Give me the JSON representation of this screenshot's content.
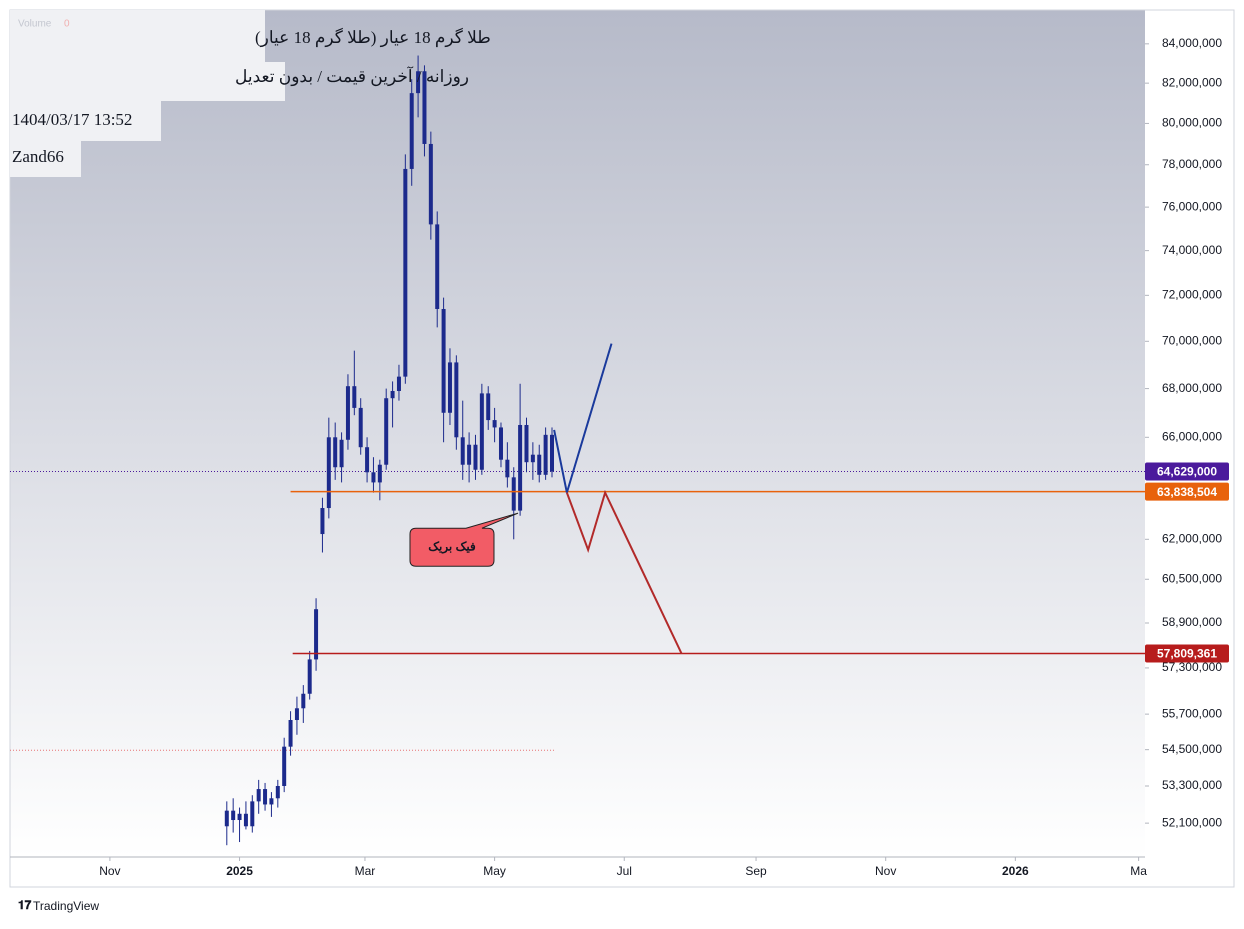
{
  "chart_data": {
    "type": "candlestick",
    "header": {
      "symbol": "طلا گرم 18 عیار (طلا گرم 18 عیار)",
      "settings": "روزانه / آخرین قیمت / بدون تعدیل",
      "timestamp": "1404/03/17 13:52",
      "author": "Zand66",
      "volume_label": "Volume",
      "volume_value": 0
    },
    "brand": "TradingView",
    "log_scale": true,
    "color": "#1c2a8c",
    "xlim": [
      -108,
      426
    ],
    "xticks": [
      {
        "value": -61,
        "label": "Nov"
      },
      {
        "value": 0,
        "label": "2025"
      },
      {
        "value": 59,
        "label": "Mar"
      },
      {
        "value": 120,
        "label": "May"
      },
      {
        "value": 181,
        "label": "Jul"
      },
      {
        "value": 243,
        "label": "Sep"
      },
      {
        "value": 304,
        "label": "Nov"
      },
      {
        "value": 365,
        "label": "2026"
      },
      {
        "value": 423,
        "label": "Ma"
      }
    ],
    "ylim": [
      51030000,
      85760000
    ],
    "yticks": [
      {
        "value": 84000000,
        "label": "84,000,000"
      },
      {
        "value": 82000000,
        "label": "82,000,000"
      },
      {
        "value": 80000000,
        "label": "80,000,000"
      },
      {
        "value": 78000000,
        "label": "78,000,000"
      },
      {
        "value": 76000000,
        "label": "76,000,000"
      },
      {
        "value": 74000000,
        "label": "74,000,000"
      },
      {
        "value": 72000000,
        "label": "72,000,000"
      },
      {
        "value": 70000000,
        "label": "70,000,000"
      },
      {
        "value": 68000000,
        "label": "68,000,000"
      },
      {
        "value": 66000000,
        "label": "66,000,000"
      },
      {
        "value": 62000000,
        "label": "62,000,000"
      },
      {
        "value": 60500000,
        "label": "60,500,000"
      },
      {
        "value": 58900000,
        "label": "58,900,000"
      },
      {
        "value": 57300000,
        "label": "57,300,000"
      },
      {
        "value": 55700000,
        "label": "55,700,000"
      },
      {
        "value": 54500000,
        "label": "54,500,000"
      },
      {
        "value": 53300000,
        "label": "53,300,000"
      },
      {
        "value": 52100000,
        "label": "52,100,000"
      }
    ],
    "x": [
      -6,
      -3,
      0,
      3,
      6,
      9,
      12,
      15,
      18,
      21,
      24,
      27,
      30,
      33,
      36,
      39,
      42,
      45,
      48,
      51,
      54,
      57,
      60,
      63,
      66,
      69,
      72,
      75,
      78,
      81,
      84,
      87,
      90,
      93,
      96,
      99,
      102,
      105,
      108,
      111,
      114,
      117,
      120,
      123,
      126,
      129,
      132,
      135,
      138,
      141,
      144,
      147
    ],
    "open": [
      52000000,
      52500000,
      52200000,
      52400000,
      52000000,
      52800000,
      53200000,
      52700000,
      52900000,
      53300000,
      54600000,
      55500000,
      55900000,
      56400000,
      57600000,
      62200000,
      63200000,
      66000000,
      64800000,
      65900000,
      68100000,
      67200000,
      65600000,
      64600000,
      64200000,
      64900000,
      67600000,
      67900000,
      68500000,
      77800000,
      81500000,
      82600000,
      79000000,
      75200000,
      71400000,
      67000000,
      69100000,
      66000000,
      64900000,
      65700000,
      64700000,
      67800000,
      66700000,
      66400000,
      65100000,
      64400000,
      63100000,
      66500000,
      65000000,
      65300000,
      64500000,
      66100000
    ],
    "high": [
      52800000,
      52900000,
      52600000,
      52800000,
      53000000,
      53500000,
      53400000,
      53100000,
      53500000,
      54900000,
      55800000,
      56300000,
      56700000,
      57900000,
      59800000,
      63600000,
      66800000,
      66600000,
      66200000,
      68600000,
      69600000,
      67600000,
      66000000,
      65200000,
      65100000,
      68000000,
      68300000,
      69000000,
      78500000,
      82200000,
      83400000,
      82900000,
      79600000,
      75800000,
      71900000,
      69700000,
      69400000,
      67500000,
      66200000,
      66100000,
      68200000,
      68100000,
      67200000,
      66600000,
      65800000,
      64800000,
      68200000,
      66800000,
      65800000,
      65700000,
      66400000,
      66400000
    ],
    "low": [
      51400000,
      51800000,
      51500000,
      51900000,
      51800000,
      52400000,
      52500000,
      52300000,
      52600000,
      53100000,
      54300000,
      55000000,
      55400000,
      56200000,
      57200000,
      61500000,
      62800000,
      64300000,
      64200000,
      65500000,
      66900000,
      65300000,
      64200000,
      63800000,
      63500000,
      64700000,
      66400000,
      67500000,
      68200000,
      77000000,
      80300000,
      78400000,
      74500000,
      70600000,
      65800000,
      66500000,
      65500000,
      64300000,
      64200000,
      64300000,
      64500000,
      66300000,
      65800000,
      64800000,
      64000000,
      62000000,
      62900000,
      64600000,
      64300000,
      64200000,
      64300000,
      64400000
    ],
    "close": [
      52500000,
      52200000,
      52400000,
      52000000,
      52800000,
      53200000,
      52700000,
      52900000,
      53300000,
      54600000,
      55500000,
      55900000,
      56400000,
      57600000,
      59400000,
      63200000,
      66000000,
      64800000,
      65900000,
      68100000,
      67200000,
      65600000,
      64600000,
      64200000,
      64900000,
      67600000,
      67900000,
      68500000,
      77800000,
      81500000,
      82600000,
      79000000,
      75200000,
      71400000,
      67000000,
      69100000,
      66000000,
      64900000,
      65700000,
      64700000,
      67800000,
      66700000,
      66400000,
      65100000,
      64400000,
      63100000,
      66500000,
      65000000,
      65300000,
      64500000,
      66100000,
      64629000
    ],
    "last_price": {
      "value": 64629000,
      "label": "64,629,000",
      "color": "#4b1a9c"
    },
    "horizontal_lines": [
      {
        "value": 63838504,
        "label": "63,838,504",
        "color": "#e8620c",
        "x_start": 24
      },
      {
        "value": 57809361,
        "label": "57,809,361",
        "color": "#b71c1c",
        "x_start": 25
      }
    ],
    "reference_line": {
      "value": 54480000,
      "x": [
        -108,
        148
      ],
      "color": "#e57373"
    },
    "drawings": [
      {
        "color": "#1a3a9c",
        "x": [
          148,
          154,
          175
        ],
        "y": [
          66300000,
          63800000,
          69900000
        ]
      },
      {
        "color": "#b22a2a",
        "x": [
          154,
          164,
          172,
          208
        ],
        "y": [
          63800000,
          61600000,
          63800000,
          57800000
        ]
      }
    ],
    "annotations": [
      {
        "text": "فیک بریک",
        "x": 131,
        "y": 63000000,
        "color": "#f25c66"
      }
    ]
  }
}
